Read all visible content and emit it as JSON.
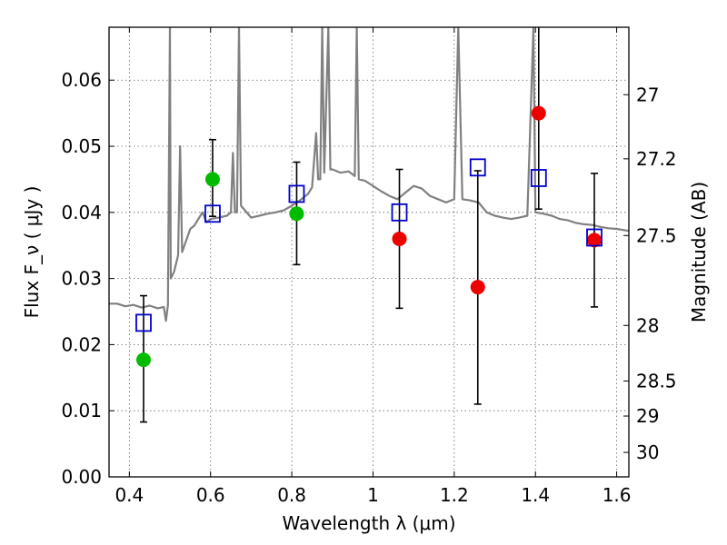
{
  "chart_data": {
    "type": "scatter",
    "title": "",
    "xlabel": "Wavelength  λ (μm)",
    "ylabel": "Flux  F_ν  ( μJy )",
    "y2label": "Magnitude (AB)",
    "xlim": [
      0.35,
      1.63
    ],
    "ylim": [
      0.0,
      0.068
    ],
    "grid": true,
    "x_ticks": [
      0.4,
      0.6,
      0.8,
      1.0,
      1.2,
      1.4,
      1.6
    ],
    "x_tick_labels": [
      "0.4",
      "0.6",
      "0.8",
      "1",
      "1.2",
      "1.4",
      "1.6"
    ],
    "y_ticks": [
      0.0,
      0.01,
      0.02,
      0.03,
      0.04,
      0.05,
      0.06
    ],
    "y_tick_labels": [
      "0.00",
      "0.01",
      "0.02",
      "0.03",
      "0.04",
      "0.05",
      "0.06"
    ],
    "y2_ticks": [
      {
        "label": "27",
        "flux": 0.0578
      },
      {
        "label": "27.2",
        "flux": 0.0481
      },
      {
        "label": "27.5",
        "flux": 0.0365
      },
      {
        "label": "28",
        "flux": 0.0229
      },
      {
        "label": "28.5",
        "flux": 0.0145
      },
      {
        "label": "29",
        "flux": 0.0092
      },
      {
        "label": "30",
        "flux": 0.0037
      }
    ],
    "colors": {
      "model": "#808080",
      "green_points": "#00bb00",
      "red_points": "#ee0000",
      "squares": "#0000cc",
      "errorbars": "#000000"
    },
    "series": [
      {
        "kind": "line",
        "points": [
          [
            0.35,
            0.0262
          ],
          [
            0.37,
            0.0262
          ],
          [
            0.39,
            0.0258
          ],
          [
            0.41,
            0.026
          ],
          [
            0.43,
            0.0256
          ],
          [
            0.45,
            0.0259
          ],
          [
            0.47,
            0.0255
          ],
          [
            0.485,
            0.0257
          ],
          [
            0.49,
            0.0236
          ],
          [
            0.495,
            0.026
          ],
          [
            0.5,
            0.068
          ],
          [
            0.502,
            0.03
          ],
          [
            0.51,
            0.031
          ],
          [
            0.52,
            0.0335
          ],
          [
            0.525,
            0.05
          ],
          [
            0.53,
            0.034
          ],
          [
            0.55,
            0.0375
          ],
          [
            0.56,
            0.038
          ],
          [
            0.57,
            0.039
          ],
          [
            0.58,
            0.04
          ],
          [
            0.59,
            0.0385
          ],
          [
            0.6,
            0.039
          ],
          [
            0.62,
            0.0392
          ],
          [
            0.64,
            0.0395
          ],
          [
            0.65,
            0.04
          ],
          [
            0.655,
            0.049
          ],
          [
            0.66,
            0.04
          ],
          [
            0.665,
            0.04
          ],
          [
            0.67,
            0.068
          ],
          [
            0.675,
            0.041
          ],
          [
            0.7,
            0.0392
          ],
          [
            0.72,
            0.0395
          ],
          [
            0.74,
            0.0398
          ],
          [
            0.76,
            0.04
          ],
          [
            0.78,
            0.0403
          ],
          [
            0.8,
            0.041
          ],
          [
            0.82,
            0.0418
          ],
          [
            0.84,
            0.0428
          ],
          [
            0.85,
            0.0438
          ],
          [
            0.86,
            0.052
          ],
          [
            0.865,
            0.045
          ],
          [
            0.87,
            0.045
          ],
          [
            0.875,
            0.068
          ],
          [
            0.88,
            0.046
          ],
          [
            0.89,
            0.068
          ],
          [
            0.895,
            0.0465
          ],
          [
            0.9,
            0.0465
          ],
          [
            0.92,
            0.046
          ],
          [
            0.94,
            0.0462
          ],
          [
            0.955,
            0.0455
          ],
          [
            0.96,
            0.068
          ],
          [
            0.965,
            0.045
          ],
          [
            0.98,
            0.0448
          ],
          [
            1.0,
            0.044
          ],
          [
            1.02,
            0.0432
          ],
          [
            1.04,
            0.0425
          ],
          [
            1.06,
            0.042
          ],
          [
            1.08,
            0.043
          ],
          [
            1.1,
            0.044
          ],
          [
            1.12,
            0.0436
          ],
          [
            1.14,
            0.0425
          ],
          [
            1.16,
            0.042
          ],
          [
            1.18,
            0.0415
          ],
          [
            1.2,
            0.042
          ],
          [
            1.21,
            0.068
          ],
          [
            1.22,
            0.042
          ],
          [
            1.24,
            0.0418
          ],
          [
            1.26,
            0.0415
          ],
          [
            1.28,
            0.04
          ],
          [
            1.3,
            0.0395
          ],
          [
            1.32,
            0.0392
          ],
          [
            1.34,
            0.039
          ],
          [
            1.36,
            0.0392
          ],
          [
            1.38,
            0.0395
          ],
          [
            1.395,
            0.068
          ],
          [
            1.4,
            0.04
          ],
          [
            1.42,
            0.0398
          ],
          [
            1.44,
            0.0395
          ],
          [
            1.46,
            0.039
          ],
          [
            1.48,
            0.0388
          ],
          [
            1.5,
            0.0384
          ],
          [
            1.52,
            0.0382
          ],
          [
            1.54,
            0.0381
          ],
          [
            1.56,
            0.0378
          ],
          [
            1.58,
            0.0376
          ],
          [
            1.6,
            0.0375
          ],
          [
            1.63,
            0.0372
          ]
        ]
      },
      {
        "kind": "circles",
        "color": "green",
        "points": [
          [
            0.435,
            0.0177
          ],
          [
            0.605,
            0.045
          ],
          [
            0.812,
            0.0398
          ]
        ]
      },
      {
        "kind": "circles",
        "color": "red",
        "points": [
          [
            1.065,
            0.036
          ],
          [
            1.258,
            0.0287
          ],
          [
            1.408,
            0.055
          ],
          [
            1.545,
            0.0358
          ]
        ]
      },
      {
        "kind": "squares",
        "color": "blue",
        "points": [
          [
            0.435,
            0.0233
          ],
          [
            0.605,
            0.0398
          ],
          [
            0.812,
            0.0428
          ],
          [
            1.065,
            0.04
          ],
          [
            1.258,
            0.0468
          ],
          [
            1.408,
            0.0452
          ],
          [
            1.545,
            0.0362
          ]
        ]
      },
      {
        "kind": "errorbars",
        "bars": [
          {
            "x": 0.435,
            "low": 0.0083,
            "high": 0.0274
          },
          {
            "x": 0.605,
            "low": 0.0394,
            "high": 0.051
          },
          {
            "x": 0.812,
            "low": 0.0321,
            "high": 0.0476
          },
          {
            "x": 1.065,
            "low": 0.0255,
            "high": 0.0465
          },
          {
            "x": 1.258,
            "low": 0.011,
            "high": 0.0463
          },
          {
            "x": 1.408,
            "low": 0.0405,
            "high": 0.068
          },
          {
            "x": 1.545,
            "low": 0.0257,
            "high": 0.0459
          }
        ]
      }
    ]
  }
}
